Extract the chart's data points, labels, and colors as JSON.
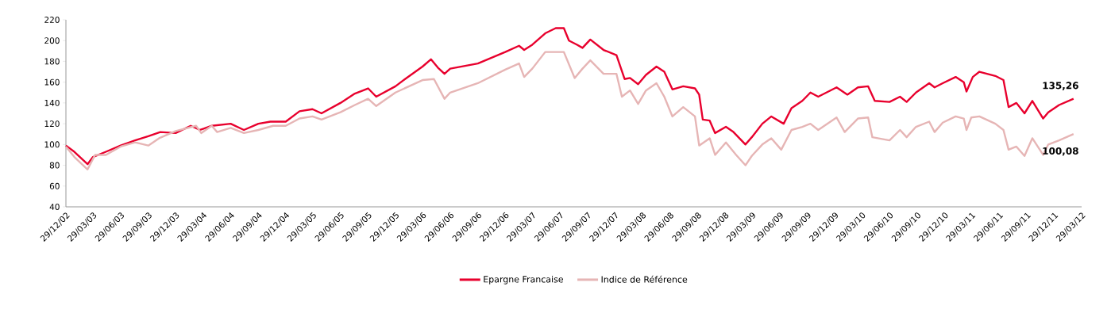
{
  "chart_data": {
    "type": "line",
    "ylim": [
      40,
      220
    ],
    "yticks": [
      40,
      60,
      80,
      100,
      120,
      140,
      160,
      180,
      200,
      220
    ],
    "xlim": [
      "2002-12-29",
      "2012-03-29"
    ],
    "xticks": [
      {
        "value": "2002-12-29",
        "label": "29/12/02"
      },
      {
        "value": "2003-03-29",
        "label": "29/03/03"
      },
      {
        "value": "2003-06-29",
        "label": "29/06/03"
      },
      {
        "value": "2003-09-29",
        "label": "29/09/03"
      },
      {
        "value": "2003-12-29",
        "label": "29/12/03"
      },
      {
        "value": "2004-03-29",
        "label": "29/03/04"
      },
      {
        "value": "2004-06-29",
        "label": "29/06/04"
      },
      {
        "value": "2004-09-29",
        "label": "29/09/04"
      },
      {
        "value": "2004-12-29",
        "label": "29/12/04"
      },
      {
        "value": "2005-03-29",
        "label": "29/03/05"
      },
      {
        "value": "2005-06-29",
        "label": "29/06/05"
      },
      {
        "value": "2005-09-29",
        "label": "29/09/05"
      },
      {
        "value": "2005-12-29",
        "label": "29/12/05"
      },
      {
        "value": "2006-03-29",
        "label": "29/03/06"
      },
      {
        "value": "2006-06-29",
        "label": "29/06/06"
      },
      {
        "value": "2006-09-29",
        "label": "29/09/06"
      },
      {
        "value": "2006-12-29",
        "label": "29/12/06"
      },
      {
        "value": "2007-03-29",
        "label": "29/03/07"
      },
      {
        "value": "2007-06-29",
        "label": "29/06/07"
      },
      {
        "value": "2007-09-29",
        "label": "29/09/07"
      },
      {
        "value": "2007-12-29",
        "label": "29/12/07"
      },
      {
        "value": "2008-03-29",
        "label": "29/03/08"
      },
      {
        "value": "2008-06-29",
        "label": "29/06/08"
      },
      {
        "value": "2008-09-29",
        "label": "29/09/08"
      },
      {
        "value": "2008-12-29",
        "label": "29/12/08"
      },
      {
        "value": "2009-03-29",
        "label": "29/03/09"
      },
      {
        "value": "2009-06-29",
        "label": "29/06/09"
      },
      {
        "value": "2009-09-29",
        "label": "29/09/09"
      },
      {
        "value": "2009-12-29",
        "label": "29/12/09"
      },
      {
        "value": "2010-03-29",
        "label": "29/03/10"
      },
      {
        "value": "2010-06-29",
        "label": "29/06/10"
      },
      {
        "value": "2010-09-29",
        "label": "29/09/10"
      },
      {
        "value": "2010-12-29",
        "label": "29/12/10"
      },
      {
        "value": "2011-03-29",
        "label": "29/03/11"
      },
      {
        "value": "2011-06-29",
        "label": "29/06/11"
      },
      {
        "value": "2011-09-29",
        "label": "29/09/11"
      },
      {
        "value": "2011-12-29",
        "label": "29/12/11"
      },
      {
        "value": "2012-03-29",
        "label": "29/03/12"
      }
    ],
    "legend": "bottom",
    "series": [
      {
        "name": "Epargne Francaise",
        "color": "#e8002d",
        "x": [
          "2002-12-29",
          "2003-01-26",
          "2003-03-11",
          "2003-03-29",
          "2003-05-11",
          "2003-06-29",
          "2003-08-16",
          "2003-09-29",
          "2003-11-08",
          "2003-12-29",
          "2004-02-17",
          "2004-03-19",
          "2004-04-27",
          "2004-06-29",
          "2004-08-12",
          "2004-09-29",
          "2004-11-08",
          "2004-12-29",
          "2005-02-13",
          "2005-03-28",
          "2005-04-27",
          "2005-06-29",
          "2005-08-16",
          "2005-09-29",
          "2005-10-26",
          "2005-12-29",
          "2006-01-30",
          "2006-03-29",
          "2006-04-26",
          "2006-05-19",
          "2006-06-10",
          "2006-06-29",
          "2006-09-29",
          "2006-12-29",
          "2007-02-13",
          "2007-03-02",
          "2007-03-29",
          "2007-05-11",
          "2007-06-15",
          "2007-07-12",
          "2007-07-29",
          "2007-08-25",
          "2007-09-12",
          "2007-10-08",
          "2007-11-21",
          "2008-01-03",
          "2008-01-30",
          "2008-02-17",
          "2008-03-15",
          "2008-04-10",
          "2008-05-15",
          "2008-06-10",
          "2008-07-07",
          "2008-08-12",
          "2008-09-20",
          "2008-10-04",
          "2008-10-16",
          "2008-11-08",
          "2008-11-26",
          "2009-01-01",
          "2009-01-26",
          "2009-03-07",
          "2009-03-28",
          "2009-05-02",
          "2009-06-01",
          "2009-07-12",
          "2009-08-07",
          "2009-09-12",
          "2009-10-09",
          "2009-11-04",
          "2010-01-04",
          "2010-02-09",
          "2010-03-16",
          "2010-04-19",
          "2010-05-11",
          "2010-06-29",
          "2010-08-03",
          "2010-08-25",
          "2010-09-25",
          "2010-11-08",
          "2010-11-26",
          "2010-12-23",
          "2011-02-04",
          "2011-03-03",
          "2011-03-12",
          "2011-04-02",
          "2011-04-24",
          "2011-06-16",
          "2011-07-13",
          "2011-07-30",
          "2011-08-25",
          "2011-09-21",
          "2011-10-17",
          "2011-11-22",
          "2011-12-09",
          "2012-01-14",
          "2012-03-02"
        ],
        "values": [
          99,
          93,
          81,
          88,
          93,
          99,
          104,
          108,
          112,
          111,
          118,
          114,
          118,
          120,
          114,
          120,
          122,
          122,
          132,
          134,
          130,
          140,
          149,
          154,
          146,
          156,
          163,
          175,
          182,
          174,
          168,
          173,
          178,
          189,
          195,
          191,
          196,
          207,
          212,
          212,
          200,
          196,
          193,
          201,
          191,
          186,
          163,
          164,
          158,
          167,
          175,
          170,
          153,
          156,
          154,
          148,
          124,
          123,
          111,
          117,
          112,
          100,
          107,
          120,
          127,
          120,
          135,
          142,
          150,
          146,
          155,
          148,
          155,
          156,
          142,
          141,
          146,
          141,
          150,
          159,
          155,
          159,
          165,
          160,
          151,
          165,
          170,
          166,
          162,
          136,
          140,
          130,
          142,
          125,
          131,
          138,
          144
        ]
      },
      {
        "name": "Indice de Référence",
        "color": "#e6b5b5",
        "x": [
          "2002-12-29",
          "2003-01-26",
          "2003-03-11",
          "2003-04-05",
          "2003-05-11",
          "2003-06-29",
          "2003-08-16",
          "2003-09-29",
          "2003-11-04",
          "2003-12-29",
          "2004-03-06",
          "2004-03-23",
          "2004-04-27",
          "2004-05-15",
          "2004-06-29",
          "2004-08-12",
          "2004-09-29",
          "2004-11-17",
          "2004-12-29",
          "2005-02-13",
          "2005-03-28",
          "2005-04-27",
          "2005-06-29",
          "2005-08-16",
          "2005-09-29",
          "2005-10-26",
          "2005-12-29",
          "2006-03-29",
          "2006-05-06",
          "2006-06-10",
          "2006-06-29",
          "2006-09-29",
          "2006-12-29",
          "2007-02-13",
          "2007-03-02",
          "2007-03-29",
          "2007-05-11",
          "2007-07-12",
          "2007-08-17",
          "2007-09-12",
          "2007-10-08",
          "2007-11-21",
          "2008-01-03",
          "2008-01-21",
          "2008-02-17",
          "2008-03-15",
          "2008-04-10",
          "2008-05-15",
          "2008-06-10",
          "2008-07-07",
          "2008-08-12",
          "2008-09-20",
          "2008-10-04",
          "2008-11-08",
          "2008-11-26",
          "2009-01-01",
          "2009-02-04",
          "2009-03-07",
          "2009-03-28",
          "2009-05-02",
          "2009-06-01",
          "2009-07-04",
          "2009-08-07",
          "2009-09-12",
          "2009-10-09",
          "2009-11-04",
          "2010-01-04",
          "2010-01-31",
          "2010-03-16",
          "2010-04-19",
          "2010-05-03",
          "2010-06-29",
          "2010-08-03",
          "2010-08-25",
          "2010-09-25",
          "2010-11-08",
          "2010-11-26",
          "2010-12-23",
          "2011-02-04",
          "2011-03-03",
          "2011-03-12",
          "2011-03-28",
          "2011-04-24",
          "2011-06-16",
          "2011-07-13",
          "2011-07-30",
          "2011-08-25",
          "2011-09-21",
          "2011-10-17",
          "2011-11-22",
          "2011-12-09",
          "2012-01-14",
          "2012-03-02"
        ],
        "values": [
          98,
          88,
          76,
          90,
          90,
          98,
          102,
          99,
          106,
          113,
          118,
          111,
          118,
          112,
          116,
          111,
          114,
          118,
          118,
          125,
          127,
          124,
          131,
          138,
          144,
          137,
          150,
          162,
          163,
          144,
          150,
          159,
          172,
          178,
          165,
          173,
          189,
          189,
          164,
          173,
          181,
          168,
          168,
          146,
          152,
          139,
          152,
          159,
          146,
          127,
          136,
          127,
          99,
          106,
          90,
          102,
          90,
          80,
          89,
          100,
          106,
          95,
          114,
          117,
          120,
          114,
          126,
          112,
          125,
          126,
          107,
          104,
          114,
          107,
          117,
          122,
          112,
          121,
          127,
          125,
          114,
          126,
          127,
          120,
          114,
          95,
          98,
          89,
          106,
          90,
          100,
          104,
          110
        ]
      }
    ],
    "annotations": [
      "135,26",
      "100,08"
    ]
  }
}
